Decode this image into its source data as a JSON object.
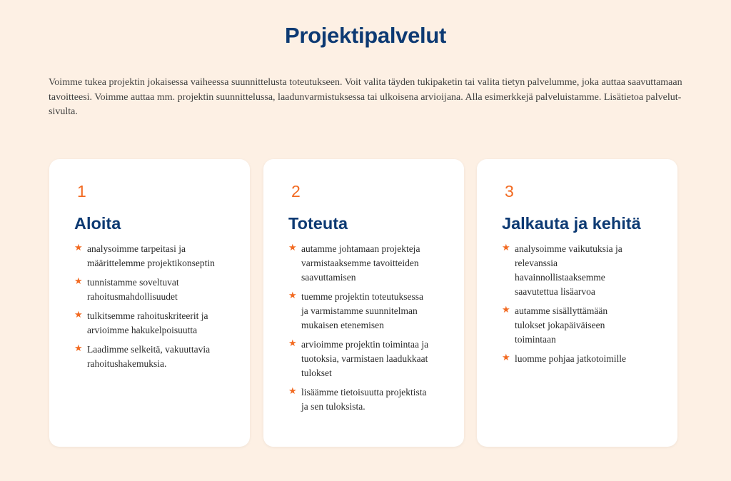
{
  "page": {
    "title": "Projektipalvelut",
    "intro": "Voimme tukea projektin jokaisessa vaiheessa suunnittelusta toteutukseen. Voit valita täyden tukipaketin tai valita tietyn palvelumme, joka auttaa saavuttamaan tavoitteesi. Voimme auttaa mm. projektin suunnittelussa, laadunvarmistuksessa tai ulkoisena arvioijana. Alla esimerkkejä palveluistamme. Lisätietoa palvelut-sivulta."
  },
  "accent_color": "#f26a21",
  "heading_color": "#0d3a73",
  "bullet_icon": "star-icon",
  "cards": [
    {
      "number": "1",
      "title": "Aloita",
      "items": [
        "analysoimme tarpeitasi ja määrittelemme projektikonseptin",
        "tunnistamme soveltuvat rahoitusmahdollisuudet",
        "tulkitsemme rahoituskriteerit ja arvioimme hakukelpoisuutta",
        "Laadimme selkeitä, vakuuttavia rahoitushakemuksia."
      ]
    },
    {
      "number": "2",
      "title": "Toteuta",
      "items": [
        "autamme johtamaan projekteja varmistaaksemme tavoitteiden saavuttamisen",
        "tuemme projektin toteutuksessa ja varmistamme suunnitelman mukaisen etenemisen",
        "arvioimme projektin toimintaa ja tuotoksia, varmistaen laadukkaat tulokset",
        "lisäämme tietoisuutta projektista ja sen tuloksista."
      ]
    },
    {
      "number": "3",
      "title": "Jalkauta ja kehitä",
      "items": [
        "analysoimme vaikutuksia ja relevanssia havainnollistaaksemme saavutettua lisäarvoa",
        "autamme sisällyttämään tulokset jokapäiväiseen toimintaan",
        "luomme pohjaa jatkotoimille"
      ]
    }
  ]
}
